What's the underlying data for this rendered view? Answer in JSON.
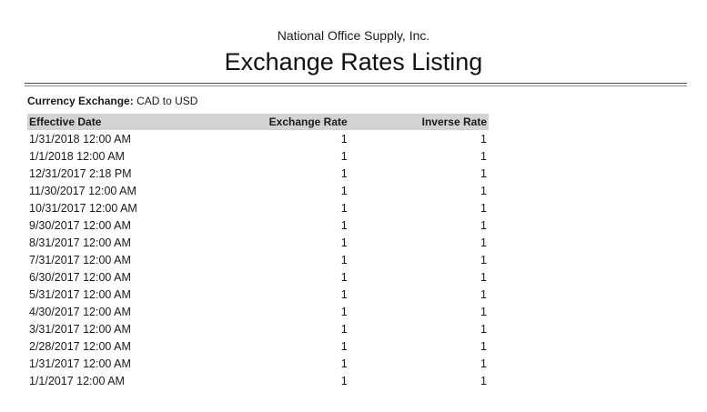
{
  "header": {
    "company": "National Office Supply, Inc.",
    "title": "Exchange Rates Listing"
  },
  "filter": {
    "label": "Currency Exchange:",
    "value": "CAD to USD"
  },
  "table": {
    "columns": [
      "Effective Date",
      "Exchange Rate",
      "Inverse Rate"
    ],
    "rows": [
      [
        "1/31/2018 12:00 AM",
        "1",
        "1"
      ],
      [
        "1/1/2018 12:00 AM",
        "1",
        "1"
      ],
      [
        "12/31/2017 2:18 PM",
        "1",
        "1"
      ],
      [
        "11/30/2017 12:00 AM",
        "1",
        "1"
      ],
      [
        "10/31/2017 12:00 AM",
        "1",
        "1"
      ],
      [
        "9/30/2017 12:00 AM",
        "1",
        "1"
      ],
      [
        "8/31/2017 12:00 AM",
        "1",
        "1"
      ],
      [
        "7/31/2017 12:00 AM",
        "1",
        "1"
      ],
      [
        "6/30/2017 12:00 AM",
        "1",
        "1"
      ],
      [
        "5/31/2017 12:00 AM",
        "1",
        "1"
      ],
      [
        "4/30/2017 12:00 AM",
        "1",
        "1"
      ],
      [
        "3/31/2017 12:00 AM",
        "1",
        "1"
      ],
      [
        "2/28/2017 12:00 AM",
        "1",
        "1"
      ],
      [
        "1/31/2017 12:00 AM",
        "1",
        "1"
      ],
      [
        "1/1/2017 12:00 AM",
        "1",
        "1"
      ]
    ]
  },
  "colors": {
    "table_header_bg": "#d3d3d3",
    "rule_top": "#4d4d4d",
    "rule_bottom": "#8c8c8c",
    "text": "#1a1a1a"
  }
}
